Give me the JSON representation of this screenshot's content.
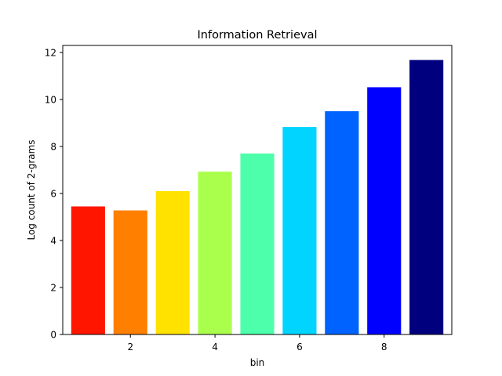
{
  "chart_data": {
    "type": "bar",
    "title": "Information Retrieval",
    "xlabel": "bin",
    "ylabel": "Log count of 2-grams",
    "x": [
      1,
      2,
      3,
      4,
      5,
      6,
      7,
      8,
      9
    ],
    "values": [
      5.45,
      5.28,
      6.1,
      6.93,
      7.7,
      8.83,
      9.5,
      10.52,
      11.68
    ],
    "colors": [
      "#ff1500",
      "#ff7f00",
      "#ffe200",
      "#aaff4d",
      "#4dffaa",
      "#00d4ff",
      "#0062ff",
      "#0000ff",
      "#00007f"
    ],
    "xlim": [
      0.4,
      9.6
    ],
    "ylim": [
      0,
      12.3
    ],
    "xticks": [
      2,
      4,
      6,
      8
    ],
    "yticks": [
      0,
      2,
      4,
      6,
      8,
      10,
      12
    ],
    "grid": false,
    "legend": "none"
  }
}
